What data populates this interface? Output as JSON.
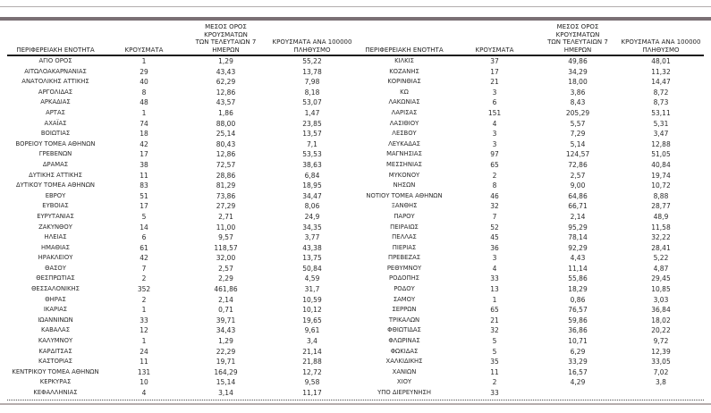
{
  "report": {
    "headers": {
      "region": "ΠΕΡΙΦΕΡΕΙΑΚΗ ΕΝΟΤΗΤΑ",
      "cases": "ΚΡΟΥΣΜΑΤΑ",
      "avg7": "ΜΕΣΟΣ ΟΡΟΣ ΚΡΟΥΣΜΑΤΩΝ\nΤΩΝ ΤΕΛΕΥΤΑΙΩΝ 7\nΗΜΕΡΩΝ",
      "per100k": "ΚΡΟΥΣΜΑΤΑ ΑΝΑ 100000\nΠΛΗΘΥΣΜΟ"
    },
    "colors": {
      "top_thin_line": "#b3aeae",
      "top_thick_line": "#7a6f74",
      "header_underline": "#1c1c1c",
      "text": "#2a2a2a",
      "bottom_line": "#b5adad",
      "background": "#ffffff"
    },
    "table": {
      "left_rows": [
        [
          "ΑΓΙΟ ΟΡΟΣ",
          "1",
          "1,29",
          "55,22"
        ],
        [
          "ΑΙΤΩΛΟΑΚΑΡΝΑΝΙΑΣ",
          "29",
          "43,43",
          "13,78"
        ],
        [
          "ΑΝΑΤΟΛΙΚΗΣ ΑΤΤΙΚΗΣ",
          "40",
          "62,29",
          "7,98"
        ],
        [
          "ΑΡΓΟΛΙΔΑΣ",
          "8",
          "12,86",
          "8,18"
        ],
        [
          "ΑΡΚΑΔΙΑΣ",
          "48",
          "43,57",
          "53,07"
        ],
        [
          "ΑΡΤΑΣ",
          "1",
          "1,86",
          "1,47"
        ],
        [
          "ΑΧΑΪΑΣ",
          "74",
          "88,00",
          "23,85"
        ],
        [
          "ΒΟΙΩΤΙΑΣ",
          "18",
          "25,14",
          "13,57"
        ],
        [
          "ΒΟΡΕΙΟΥ ΤΟΜΕΑ ΑΘΗΝΩΝ",
          "42",
          "80,43",
          "7,1"
        ],
        [
          "ΓΡΕΒΕΝΩΝ",
          "17",
          "12,86",
          "53,53"
        ],
        [
          "ΔΡΑΜΑΣ",
          "38",
          "72,57",
          "38,63"
        ],
        [
          "ΔΥΤΙΚΗΣ ΑΤΤΙΚΗΣ",
          "11",
          "28,86",
          "6,84"
        ],
        [
          "ΔΥΤΙΚΟΥ ΤΟΜΕΑ ΑΘΗΝΩΝ",
          "83",
          "81,29",
          "18,95"
        ],
        [
          "ΕΒΡΟΥ",
          "51",
          "73,86",
          "34,47"
        ],
        [
          "ΕΥΒΟΙΑΣ",
          "17",
          "27,29",
          "8,06"
        ],
        [
          "ΕΥΡΥΤΑΝΙΑΣ",
          "5",
          "2,71",
          "24,9"
        ],
        [
          "ΖΑΚΥΝΘΟΥ",
          "14",
          "11,00",
          "34,35"
        ],
        [
          "ΗΛΕΙΑΣ",
          "6",
          "9,57",
          "3,77"
        ],
        [
          "ΗΜΑΘΙΑΣ",
          "61",
          "118,57",
          "43,38"
        ],
        [
          "ΗΡΑΚΛΕΙΟΥ",
          "42",
          "32,00",
          "13,75"
        ],
        [
          "ΘΑΣΟΥ",
          "7",
          "2,57",
          "50,84"
        ],
        [
          "ΘΕΣΠΡΩΤΙΑΣ",
          "2",
          "2,29",
          "4,59"
        ],
        [
          "ΘΕΣΣΑΛΟΝΙΚΗΣ",
          "352",
          "461,86",
          "31,7"
        ],
        [
          "ΘΗΡΑΣ",
          "2",
          "2,14",
          "10,59"
        ],
        [
          "ΙΚΑΡΙΑΣ",
          "1",
          "0,71",
          "10,12"
        ],
        [
          "ΙΩΑΝΝΙΝΩΝ",
          "33",
          "39,71",
          "19,65"
        ],
        [
          "ΚΑΒΑΛΑΣ",
          "12",
          "34,43",
          "9,61"
        ],
        [
          "ΚΑΛΥΜΝΟΥ",
          "1",
          "1,29",
          "3,4"
        ],
        [
          "ΚΑΡΔΙΤΣΑΣ",
          "24",
          "22,29",
          "21,14"
        ],
        [
          "ΚΑΣΤΟΡΙΑΣ",
          "11",
          "19,71",
          "21,88"
        ],
        [
          "ΚΕΝΤΡΙΚΟΥ ΤΟΜΕΑ ΑΘΗΝΩΝ",
          "131",
          "164,29",
          "12,72"
        ],
        [
          "ΚΕΡΚΥΡΑΣ",
          "10",
          "15,14",
          "9,58"
        ],
        [
          "ΚΕΦΑΛΛΗΝΙΑΣ",
          "4",
          "3,14",
          "11,17"
        ]
      ],
      "right_rows": [
        [
          "ΚΙΛΚΙΣ",
          "37",
          "49,86",
          "48,01"
        ],
        [
          "ΚΟΖΑΝΗΣ",
          "17",
          "34,29",
          "11,32"
        ],
        [
          "ΚΟΡΙΝΘΙΑΣ",
          "21",
          "18,00",
          "14,47"
        ],
        [
          "ΚΩ",
          "3",
          "3,86",
          "8,72"
        ],
        [
          "ΛΑΚΩΝΙΑΣ",
          "6",
          "8,43",
          "8,73"
        ],
        [
          "ΛΑΡΙΣΑΣ",
          "151",
          "205,29",
          "53,11"
        ],
        [
          "ΛΑΣΙΘΙΟΥ",
          "4",
          "5,57",
          "5,31"
        ],
        [
          "ΛΕΣΒΟΥ",
          "3",
          "7,29",
          "3,47"
        ],
        [
          "ΛΕΥΚΑΔΑΣ",
          "3",
          "5,14",
          "12,88"
        ],
        [
          "ΜΑΓΝΗΣΙΑΣ",
          "97",
          "124,57",
          "51,05"
        ],
        [
          "ΜΕΣΣΗΝΙΑΣ",
          "65",
          "72,86",
          "40,84"
        ],
        [
          "ΜΥΚΟΝΟΥ",
          "2",
          "2,57",
          "19,74"
        ],
        [
          "ΝΗΣΩΝ",
          "8",
          "9,00",
          "10,72"
        ],
        [
          "ΝΟΤΙΟΥ ΤΟΜΕΑ ΑΘΗΝΩΝ",
          "46",
          "64,86",
          "8,88"
        ],
        [
          "ΞΑΝΘΗΣ",
          "32",
          "66,71",
          "28,77"
        ],
        [
          "ΠΑΡΟΥ",
          "7",
          "2,14",
          "48,9"
        ],
        [
          "ΠΕΙΡΑΙΩΣ",
          "52",
          "95,29",
          "11,58"
        ],
        [
          "ΠΕΛΛΑΣ",
          "45",
          "78,14",
          "32,22"
        ],
        [
          "ΠΙΕΡΙΑΣ",
          "36",
          "92,29",
          "28,41"
        ],
        [
          "ΠΡΕΒΕΖΑΣ",
          "3",
          "4,43",
          "5,22"
        ],
        [
          "ΡΕΘΥΜΝΟΥ",
          "4",
          "11,14",
          "4,87"
        ],
        [
          "ΡΟΔΟΠΗΣ",
          "33",
          "55,86",
          "29,45"
        ],
        [
          "ΡΟΔΟΥ",
          "13",
          "18,29",
          "10,85"
        ],
        [
          "ΣΑΜΟΥ",
          "1",
          "0,86",
          "3,03"
        ],
        [
          "ΣΕΡΡΩΝ",
          "65",
          "76,57",
          "36,84"
        ],
        [
          "ΤΡΙΚΑΛΩΝ",
          "21",
          "59,86",
          "18,02"
        ],
        [
          "ΦΘΙΩΤΙΔΑΣ",
          "32",
          "36,86",
          "20,22"
        ],
        [
          "ΦΛΩΡΙΝΑΣ",
          "5",
          "10,71",
          "9,72"
        ],
        [
          "ΦΩΚΙΔΑΣ",
          "5",
          "6,29",
          "12,39"
        ],
        [
          "ΧΑΛΚΙΔΙΚΗΣ",
          "35",
          "33,29",
          "33,05"
        ],
        [
          "ΧΑΝΙΩΝ",
          "11",
          "16,57",
          "7,02"
        ],
        [
          "ΧΙΟΥ",
          "2",
          "4,29",
          "3,8"
        ],
        [
          "ΥΠΟ ΔΙΕΡΕΥΝΗΣΗ",
          "33",
          "",
          ""
        ]
      ]
    }
  }
}
